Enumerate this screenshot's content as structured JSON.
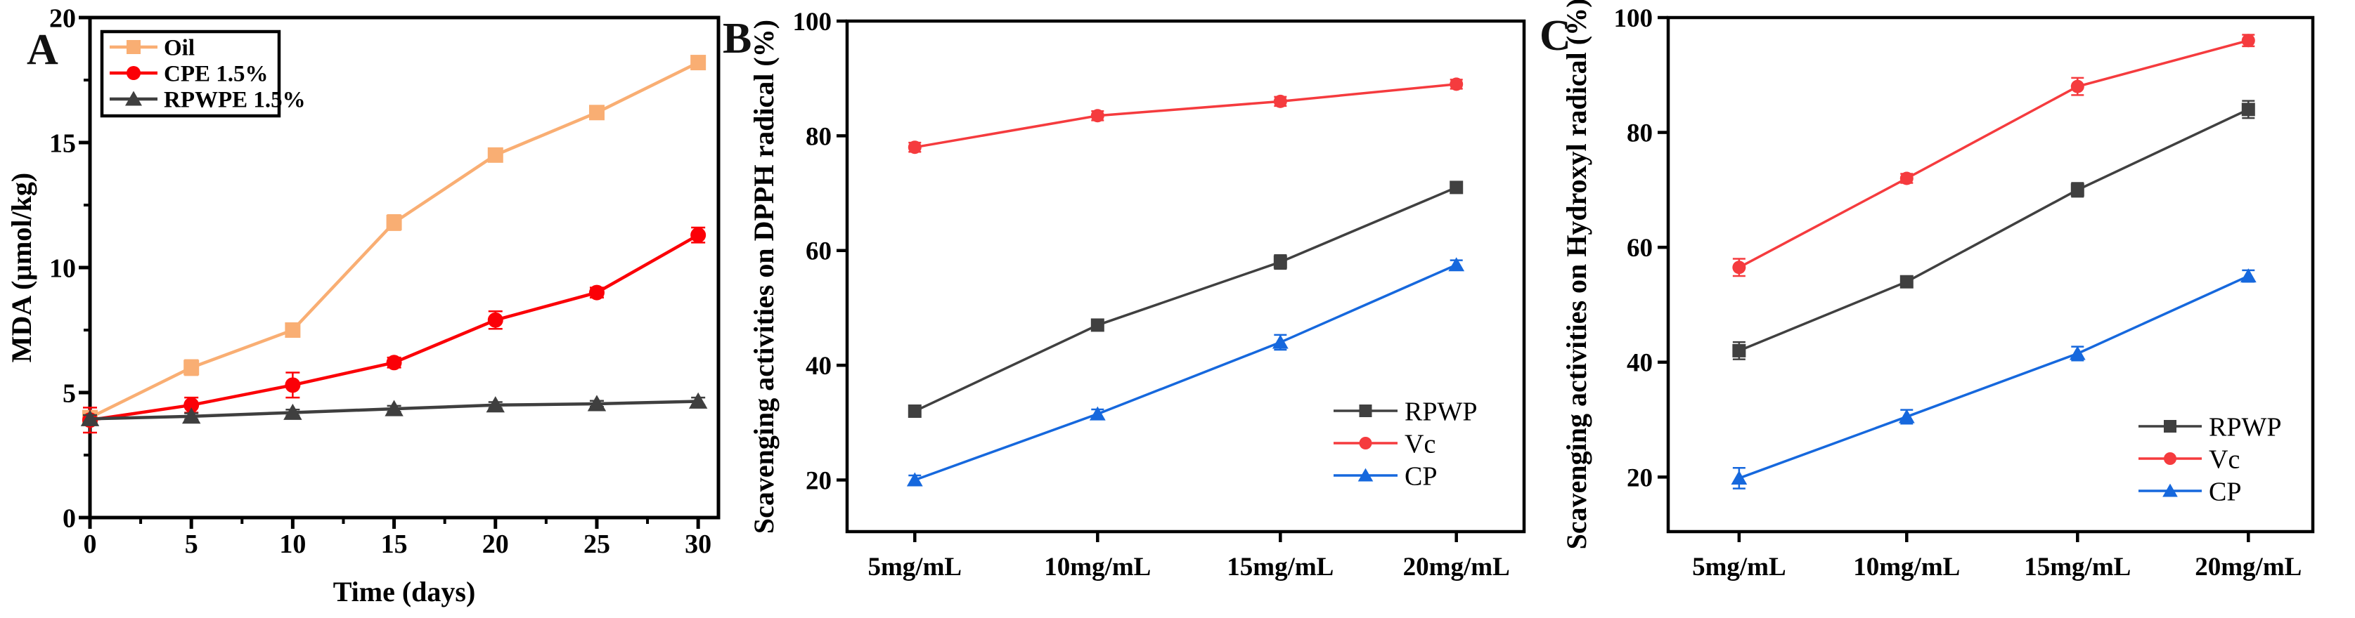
{
  "figure": {
    "background": "#ffffff",
    "panel_letters": {
      "a": "A",
      "b": "B",
      "c": "C"
    }
  },
  "colors": {
    "axis": "#000000",
    "oil_orange": "#f9ae73",
    "cpe_red": "#fb0007",
    "rpwpe_gray": "#3f3f3f",
    "rpwp_gray": "#404040",
    "vc_red": "#f53b3e",
    "cp_blue": "#1668dd"
  },
  "chart_data": [
    {
      "type": "line",
      "panel_label": "A",
      "xlabel": "Time (days)",
      "ylabel": "MDA (μmol/kg)",
      "x_numeric": true,
      "x": [
        0,
        5,
        10,
        15,
        20,
        25,
        30
      ],
      "xlim": [
        0,
        31
      ],
      "xticks": [
        0,
        5,
        10,
        15,
        20,
        25,
        30
      ],
      "xtick_labels": [
        "0",
        "5",
        "10",
        "15",
        "20",
        "25",
        "30"
      ],
      "x_minor": [
        2.5,
        7.5,
        12.5,
        17.5,
        22.5,
        27.5
      ],
      "ylim": [
        0,
        20
      ],
      "yticks": [
        0,
        5,
        10,
        15,
        20
      ],
      "ytick_labels": [
        "0",
        "5",
        "10",
        "15",
        "20"
      ],
      "y_minor": [
        2.5,
        7.5,
        12.5,
        17.5
      ],
      "grid": false,
      "legend_position": "top-left-boxed",
      "series": [
        {
          "name": "Oil",
          "color": "#f9ae73",
          "marker": "square",
          "values": [
            4.0,
            6.0,
            7.5,
            11.8,
            14.5,
            16.2,
            18.2
          ],
          "errors": [
            0.15,
            0.3,
            0.25,
            0.3,
            0.2,
            0.2,
            0.25
          ]
        },
        {
          "name": "CPE 1.5%",
          "color": "#fb0007",
          "marker": "circle",
          "values": [
            3.9,
            4.5,
            5.3,
            6.2,
            7.9,
            9.0,
            11.3
          ],
          "errors": [
            0.5,
            0.3,
            0.5,
            0.2,
            0.35,
            0.2,
            0.3
          ]
        },
        {
          "name": "RPWPE 1.5%",
          "color": "#3f3f3f",
          "marker": "triangle",
          "values": [
            3.95,
            4.05,
            4.2,
            4.35,
            4.5,
            4.55,
            4.65
          ],
          "errors": [
            0.15,
            0.12,
            0.12,
            0.12,
            0.12,
            0.12,
            0.15
          ]
        }
      ]
    },
    {
      "type": "line",
      "panel_label": "B",
      "xlabel": "",
      "ylabel": "Scavenging activities on DPPH radical (%)",
      "x_numeric": false,
      "categories": [
        "5mg/mL",
        "10mg/mL",
        "15mg/mL",
        "20mg/mL"
      ],
      "ylim": [
        11,
        100
      ],
      "yticks": [
        20,
        40,
        60,
        80,
        100
      ],
      "ytick_labels": [
        "20",
        "40",
        "60",
        "80",
        "100"
      ],
      "grid": false,
      "legend_position": "right-center",
      "series": [
        {
          "name": "RPWP",
          "color": "#404040",
          "marker": "square",
          "values": [
            32,
            47,
            58,
            71
          ],
          "errors": [
            1.0,
            0.8,
            1.2,
            0.8
          ]
        },
        {
          "name": "Vc",
          "color": "#f53b3e",
          "marker": "circle",
          "values": [
            78,
            83.5,
            86,
            89
          ],
          "errors": [
            0.8,
            0.8,
            0.8,
            0.8
          ]
        },
        {
          "name": "CP",
          "color": "#1668dd",
          "marker": "triangle",
          "values": [
            20,
            31.5,
            44,
            57.5
          ],
          "errors": [
            0.8,
            0.8,
            1.3,
            0.8
          ]
        }
      ]
    },
    {
      "type": "line",
      "panel_label": "C",
      "xlabel": "",
      "ylabel": "Scavenging activities on Hydroxyl radical (%)",
      "x_numeric": false,
      "categories": [
        "5mg/mL",
        "10mg/mL",
        "15mg/mL",
        "20mg/mL"
      ],
      "ylim": [
        10.5,
        100
      ],
      "yticks": [
        20,
        40,
        60,
        80,
        100
      ],
      "ytick_labels": [
        "20",
        "40",
        "60",
        "80",
        "100"
      ],
      "grid": false,
      "legend_position": "right-center",
      "series": [
        {
          "name": "RPWP",
          "color": "#404040",
          "marker": "square",
          "values": [
            42,
            54,
            70,
            84
          ],
          "errors": [
            1.5,
            0.8,
            1.2,
            1.5
          ]
        },
        {
          "name": "Vc",
          "color": "#f53b3e",
          "marker": "circle",
          "values": [
            56.5,
            72,
            88,
            96
          ],
          "errors": [
            1.5,
            0.8,
            1.5,
            1.0
          ]
        },
        {
          "name": "CP",
          "color": "#1668dd",
          "marker": "triangle",
          "values": [
            19.8,
            30.5,
            41.5,
            55
          ],
          "errors": [
            1.8,
            1.2,
            1.2,
            1.0
          ]
        }
      ]
    }
  ]
}
